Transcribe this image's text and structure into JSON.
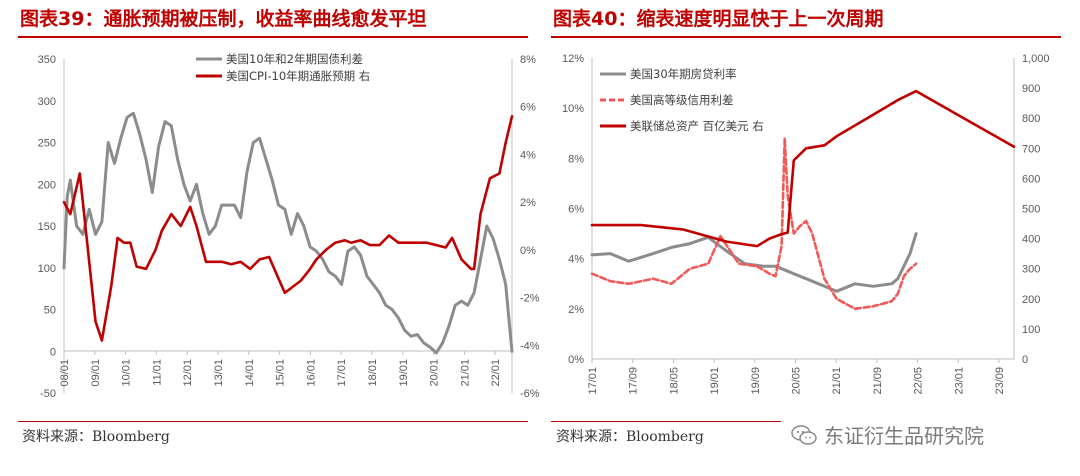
{
  "left_title": "图表39：通胀预期被压制，收益率曲线愈发平坦",
  "right_title": "图表40：缩表速度明显快于上一次周期",
  "left_source": "资料来源：Bloomberg",
  "right_source": "资料来源：Bloomberg",
  "watermark": "东证衍生品研究院",
  "colors": {
    "gray": "#8c8c8c",
    "red": "#c00000",
    "pink": "#f05a5a",
    "accent": "#c00000"
  },
  "chart_data": [
    {
      "type": "line",
      "title": "图表39：通胀预期被压制，收益率曲线愈发平坦",
      "x_tick_labels": [
        "08/01",
        "09/01",
        "10/01",
        "11/01",
        "12/01",
        "13/01",
        "14/01",
        "15/01",
        "16/01",
        "17/01",
        "18/01",
        "19/01",
        "20/01",
        "21/01",
        "22/01"
      ],
      "ylim": [
        -50,
        350
      ],
      "y_ticks": [
        "350",
        "300",
        "250",
        "200",
        "150",
        "100",
        "50",
        "0",
        "-50"
      ],
      "ylim_right": [
        -6,
        8
      ],
      "y_ticks_right": [
        "8%",
        "6%",
        "4%",
        "2%",
        "0%",
        "-2%",
        "-4%",
        "-6%"
      ],
      "legend": "top-right",
      "series": [
        {
          "name": "美国10年和2年期国债利差",
          "axis": "left",
          "color": "gray",
          "x": [
            2008.0,
            2008.1,
            2008.2,
            2008.4,
            2008.6,
            2008.8,
            2009.0,
            2009.2,
            2009.4,
            2009.6,
            2009.8,
            2010.0,
            2010.2,
            2010.4,
            2010.6,
            2010.8,
            2011.0,
            2011.2,
            2011.4,
            2011.6,
            2011.8,
            2012.0,
            2012.2,
            2012.4,
            2012.6,
            2012.8,
            2013.0,
            2013.2,
            2013.4,
            2013.6,
            2013.8,
            2014.0,
            2014.2,
            2014.4,
            2014.6,
            2014.8,
            2015.0,
            2015.2,
            2015.4,
            2015.6,
            2015.8,
            2016.0,
            2016.2,
            2016.4,
            2016.6,
            2016.8,
            2017.0,
            2017.2,
            2017.4,
            2017.6,
            2017.8,
            2018.0,
            2018.2,
            2018.4,
            2018.6,
            2018.8,
            2019.0,
            2019.2,
            2019.4,
            2019.6,
            2019.8,
            2020.0,
            2020.2,
            2020.4,
            2020.6,
            2020.8,
            2021.0,
            2021.2,
            2021.4,
            2021.6,
            2021.8,
            2022.0,
            2022.1,
            2022.2
          ],
          "values": [
            100,
            185,
            205,
            150,
            140,
            170,
            140,
            155,
            250,
            225,
            255,
            280,
            285,
            260,
            230,
            190,
            245,
            275,
            270,
            230,
            200,
            180,
            200,
            165,
            140,
            150,
            175,
            175,
            175,
            160,
            215,
            250,
            255,
            230,
            205,
            175,
            170,
            140,
            165,
            150,
            125,
            120,
            110,
            95,
            90,
            80,
            120,
            125,
            115,
            90,
            80,
            70,
            55,
            50,
            40,
            25,
            18,
            20,
            10,
            5,
            -2,
            10,
            30,
            55,
            60,
            55,
            70,
            110,
            150,
            135,
            110,
            80,
            40,
            0
          ]
        },
        {
          "name": "美国CPI-10年期通胀预期 右",
          "axis": "right",
          "color": "red",
          "x": [
            2008.0,
            2008.2,
            2008.5,
            2008.8,
            2009.0,
            2009.2,
            2009.5,
            2009.7,
            2009.9,
            2010.1,
            2010.3,
            2010.6,
            2010.9,
            2011.1,
            2011.4,
            2011.7,
            2012.0,
            2012.2,
            2012.5,
            2012.8,
            2013.0,
            2013.3,
            2013.6,
            2013.9,
            2014.2,
            2014.5,
            2014.8,
            2015.0,
            2015.2,
            2015.5,
            2015.8,
            2016.0,
            2016.3,
            2016.6,
            2016.9,
            2017.1,
            2017.4,
            2017.7,
            2018.0,
            2018.3,
            2018.6,
            2018.9,
            2019.2,
            2019.5,
            2019.8,
            2020.1,
            2020.3,
            2020.6,
            2020.9,
            2021.0,
            2021.2,
            2021.5,
            2021.8,
            2022.0,
            2022.2
          ],
          "values": [
            2.0,
            1.5,
            3.2,
            -0.5,
            -3.0,
            -3.8,
            -1.5,
            0.5,
            0.3,
            0.3,
            -0.7,
            -0.8,
            0.0,
            0.8,
            1.5,
            1.0,
            1.8,
            1.0,
            -0.5,
            -0.5,
            -0.5,
            -0.6,
            -0.5,
            -0.8,
            -0.4,
            -0.3,
            -1.2,
            -1.8,
            -1.6,
            -1.3,
            -0.8,
            -0.4,
            0.0,
            0.3,
            0.4,
            0.3,
            0.4,
            0.2,
            0.2,
            0.6,
            0.3,
            0.3,
            0.3,
            0.3,
            0.2,
            0.1,
            0.5,
            -0.4,
            -0.8,
            -0.8,
            1.5,
            3.0,
            3.2,
            4.5,
            5.6
          ]
        }
      ]
    },
    {
      "type": "line",
      "title": "图表40：缩表速度明显快于上一次周期",
      "x_tick_labels": [
        "17/01",
        "17/09",
        "18/05",
        "19/01",
        "19/09",
        "20/05",
        "21/01",
        "21/09",
        "22/05",
        "23/01",
        "23/09"
      ],
      "ylim": [
        0,
        12
      ],
      "y_ticks": [
        "12%",
        "10%",
        "8%",
        "6%",
        "4%",
        "2%",
        "0%"
      ],
      "ylim_right": [
        0,
        1000
      ],
      "y_ticks_right": [
        "1,000",
        "900",
        "800",
        "700",
        "600",
        "500",
        "400",
        "300",
        "200",
        "100",
        "0"
      ],
      "legend": "top-left",
      "series": [
        {
          "name": "美国30年期房贷利率",
          "axis": "left",
          "color": "gray",
          "x": [
            2017.0,
            2017.3,
            2017.6,
            2018.0,
            2018.3,
            2018.6,
            2018.9,
            2019.2,
            2019.5,
            2019.8,
            2020.0,
            2020.3,
            2020.6,
            2020.9,
            2021.0,
            2021.3,
            2021.6,
            2021.9,
            2022.0,
            2022.2,
            2022.3
          ],
          "values": [
            4.15,
            4.2,
            3.9,
            4.2,
            4.45,
            4.6,
            4.85,
            4.3,
            3.8,
            3.7,
            3.7,
            3.4,
            3.1,
            2.8,
            2.7,
            3.0,
            2.9,
            3.0,
            3.2,
            4.2,
            5.0
          ]
        },
        {
          "name": "美国高等级信用利差",
          "axis": "left",
          "color": "pink",
          "x": [
            2017.0,
            2017.3,
            2017.6,
            2018.0,
            2018.3,
            2018.6,
            2018.9,
            2019.1,
            2019.4,
            2019.7,
            2019.9,
            2020.0,
            2020.1,
            2020.15,
            2020.2,
            2020.3,
            2020.4,
            2020.5,
            2020.6,
            2020.8,
            2021.0,
            2021.3,
            2021.6,
            2021.9,
            2022.0,
            2022.1,
            2022.2,
            2022.3
          ],
          "values": [
            3.4,
            3.1,
            3.0,
            3.2,
            3.0,
            3.6,
            3.8,
            4.9,
            3.8,
            3.7,
            3.4,
            3.3,
            4.5,
            8.8,
            6.5,
            5.0,
            5.3,
            5.5,
            5.0,
            3.2,
            2.4,
            2.0,
            2.1,
            2.3,
            2.6,
            3.3,
            3.6,
            3.8
          ]
        },
        {
          "name": "美联储总资产 百亿美元 右",
          "axis": "right",
          "color": "red",
          "x": [
            2017.0,
            2017.8,
            2018.5,
            2019.2,
            2019.7,
            2019.9,
            2020.1,
            2020.2,
            2020.3,
            2020.5,
            2020.8,
            2021.0,
            2021.5,
            2022.0,
            2022.3,
            2023.9
          ],
          "values": [
            445,
            445,
            430,
            390,
            375,
            400,
            415,
            420,
            660,
            700,
            710,
            740,
            800,
            860,
            890,
            705
          ]
        }
      ]
    }
  ]
}
